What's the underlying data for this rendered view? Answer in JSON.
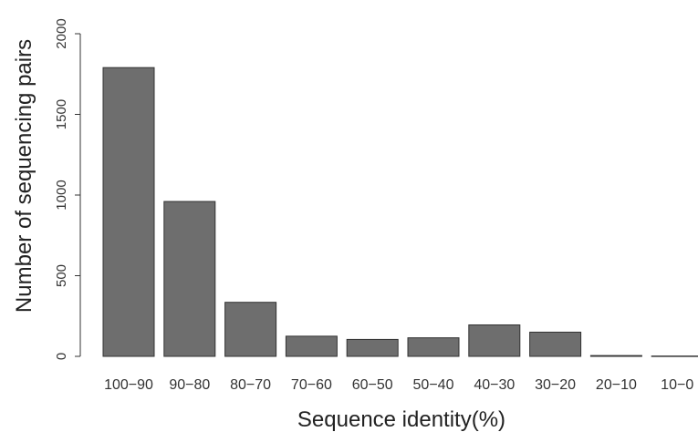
{
  "chart_data": {
    "type": "bar",
    "title": "",
    "xlabel": "Sequence identity(%)",
    "ylabel": "Number of sequencing pairs",
    "categories": [
      "100−90",
      "90−80",
      "80−70",
      "70−60",
      "60−50",
      "50−40",
      "40−30",
      "30−20",
      "20−10",
      "10−0"
    ],
    "values": [
      1790,
      960,
      335,
      125,
      105,
      115,
      195,
      150,
      5,
      2
    ],
    "ylim": [
      0,
      2000
    ],
    "yticks": [
      0,
      500,
      1000,
      1500,
      2000
    ],
    "ytick_labels": [
      "0",
      "500",
      "1000",
      "1500",
      "2000"
    ],
    "bar_color": "#6e6e6e",
    "grid": false,
    "legend": "none"
  }
}
